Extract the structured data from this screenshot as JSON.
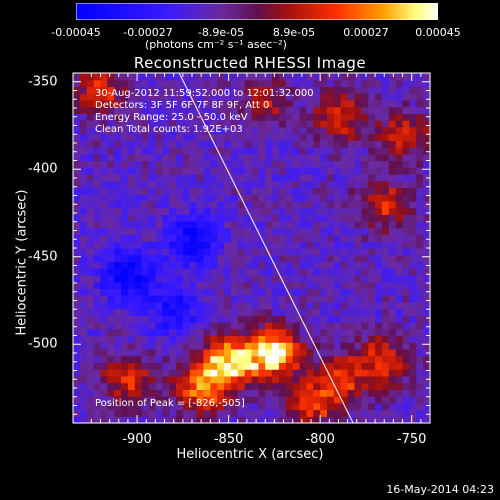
{
  "colorbar": {
    "tick_labels": [
      "-0.00045",
      "-0.00027",
      "-8.9e-05",
      "8.9e-05",
      "0.00027",
      "0.00045"
    ],
    "unit": "(photons cm⁻² s⁻¹ asec⁻²)"
  },
  "chart_data": {
    "type": "heatmap",
    "title": "Reconstructed RHESSI Image",
    "xlabel": "Heliocentric X (arcsec)",
    "ylabel": "Heliocentric Y (arcsec)",
    "xlim": [
      -935,
      -740
    ],
    "ylim": [
      -545,
      -345
    ],
    "x_ticks": [
      "-900",
      "-850",
      "-800",
      "-750"
    ],
    "x_tick_values": [
      -900,
      -850,
      -800,
      -750
    ],
    "y_ticks": [
      "-350",
      "-400",
      "-450",
      "-500"
    ],
    "y_tick_values": [
      -350,
      -400,
      -450,
      -500
    ],
    "colorbar_range": [
      -0.00045,
      0.00045
    ],
    "colormap": "blue-purple-red-orange-yellow-white",
    "limb_line": {
      "x": [
        -877,
        -782
      ],
      "y": [
        -345,
        -545
      ]
    },
    "bright_regions": [
      {
        "x": -850,
        "y": -510,
        "level": 0.9
      },
      {
        "x": -826,
        "y": -505,
        "level": 1.0
      },
      {
        "x": -865,
        "y": -525,
        "level": 0.7
      },
      {
        "x": -905,
        "y": -520,
        "level": 0.5
      },
      {
        "x": -790,
        "y": -520,
        "level": 0.55
      },
      {
        "x": -765,
        "y": -510,
        "level": 0.55
      },
      {
        "x": -805,
        "y": -535,
        "level": 0.5
      },
      {
        "x": -790,
        "y": -370,
        "level": 0.5
      },
      {
        "x": -765,
        "y": -420,
        "level": 0.45
      },
      {
        "x": -830,
        "y": -360,
        "level": 0.35
      },
      {
        "x": -755,
        "y": -380,
        "level": 0.45
      },
      {
        "x": -920,
        "y": -355,
        "level": 0.5
      }
    ],
    "dark_regions": [
      {
        "x": -905,
        "y": -460,
        "level": -0.6
      },
      {
        "x": -870,
        "y": -440,
        "level": -0.5
      },
      {
        "x": -880,
        "y": -480,
        "level": -0.4
      }
    ],
    "annotations": [
      "30-Aug-2012 11:59:52.000 to 12:01:32.000",
      "Detectors: 3F 5F 6F 7F 8F 9F, Att 0",
      "Energy Range: 25.0 - 50.0 keV",
      "Clean      Total counts: 1.92E+03"
    ],
    "peak_label": "Position of Peak = [-826,-505]"
  },
  "footer": "16-May-2014 04:23"
}
